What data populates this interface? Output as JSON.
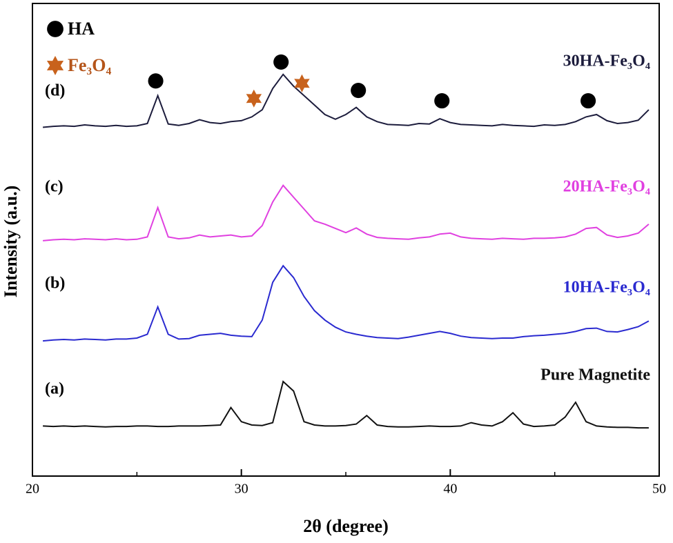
{
  "chart_data": {
    "type": "line",
    "x_label": "2θ (degree)",
    "y_label": "Intensity (a.u.)",
    "xlim": [
      20,
      50
    ],
    "ylim": [
      0,
      100
    ],
    "xticks": [
      20,
      30,
      40,
      50
    ],
    "xminorticks": [
      25,
      35,
      45
    ],
    "x": [
      20.5,
      21,
      21.5,
      22,
      22.5,
      23,
      23.5,
      24,
      24.5,
      25,
      25.5,
      26,
      26.5,
      27,
      27.5,
      28,
      28.5,
      29,
      29.5,
      30,
      30.5,
      31,
      31.5,
      32,
      32.5,
      33,
      33.5,
      34,
      34.5,
      35,
      35.5,
      36,
      36.5,
      37,
      37.5,
      38,
      38.5,
      39,
      39.5,
      40,
      40.5,
      41,
      41.5,
      42,
      42.5,
      43,
      43.5,
      44,
      44.5,
      45,
      45.5,
      46,
      46.5,
      47,
      47.5,
      48,
      48.5,
      49,
      49.5
    ],
    "series": [
      {
        "name": "30HA-Fe₃O₄",
        "tag": "(d)",
        "color": "#1c1c3c",
        "values": [
          73.8,
          74,
          74.1,
          74,
          74.3,
          74.1,
          74,
          74.2,
          74,
          74.1,
          74.6,
          80.5,
          74.5,
          74.2,
          74.6,
          75.4,
          74.8,
          74.6,
          75,
          75.2,
          76,
          77.5,
          82,
          85,
          82.5,
          80.5,
          78.5,
          76.5,
          75.5,
          76.5,
          78,
          76,
          75,
          74.4,
          74.3,
          74.2,
          74.6,
          74.5,
          75.6,
          74.8,
          74.4,
          74.3,
          74.2,
          74.1,
          74.4,
          74.2,
          74.1,
          74,
          74.3,
          74.2,
          74.4,
          75,
          76,
          76.5,
          75.2,
          74.6,
          74.8,
          75.3,
          77.5
        ]
      },
      {
        "name": "20HA-Fe₃O₄",
        "tag": "(c)",
        "color": "#e040e0",
        "values": [
          49.8,
          50,
          50.1,
          50,
          50.2,
          50.1,
          50,
          50.2,
          50,
          50.1,
          50.6,
          56.8,
          50.6,
          50.2,
          50.4,
          51,
          50.6,
          50.8,
          51,
          50.6,
          50.8,
          53,
          58,
          61.5,
          59,
          56.5,
          54,
          53.3,
          52.4,
          51.5,
          52.5,
          51.2,
          50.5,
          50.3,
          50.2,
          50.1,
          50.4,
          50.6,
          51.2,
          51.4,
          50.6,
          50.3,
          50.2,
          50.1,
          50.3,
          50.2,
          50.1,
          50.3,
          50.3,
          50.4,
          50.6,
          51.2,
          52.4,
          52.6,
          51,
          50.5,
          50.8,
          51.4,
          53.3
        ]
      },
      {
        "name": "10HA-Fe₃O₄",
        "tag": "(b)",
        "color": "#2a2ad0",
        "values": [
          28.6,
          28.8,
          28.9,
          28.8,
          29,
          28.9,
          28.8,
          29,
          29,
          29.2,
          30,
          35.8,
          30,
          29,
          29.1,
          29.8,
          30,
          30.2,
          29.8,
          29.6,
          29.5,
          33,
          41,
          44.5,
          42,
          38,
          35,
          33,
          31.5,
          30.5,
          30,
          29.6,
          29.3,
          29.2,
          29.1,
          29.4,
          29.8,
          30.2,
          30.6,
          30.2,
          29.6,
          29.3,
          29.2,
          29.1,
          29.2,
          29.2,
          29.5,
          29.7,
          29.8,
          30,
          30.2,
          30.6,
          31.2,
          31.3,
          30.6,
          30.5,
          31,
          31.6,
          32.8
        ]
      },
      {
        "name": "Pure Magnetite",
        "tag": "(a)",
        "color": "#111111",
        "values": [
          10.6,
          10.5,
          10.6,
          10.5,
          10.6,
          10.5,
          10.4,
          10.5,
          10.5,
          10.6,
          10.6,
          10.5,
          10.5,
          10.6,
          10.6,
          10.6,
          10.7,
          10.8,
          14.5,
          11.5,
          10.8,
          10.7,
          11.3,
          20,
          18,
          11.5,
          10.8,
          10.6,
          10.6,
          10.7,
          11,
          12.8,
          10.8,
          10.5,
          10.4,
          10.4,
          10.5,
          10.6,
          10.5,
          10.5,
          10.6,
          11.3,
          10.8,
          10.6,
          11.5,
          13.4,
          11,
          10.5,
          10.6,
          10.8,
          12.5,
          15.6,
          11.5,
          10.6,
          10.4,
          10.3,
          10.3,
          10.2,
          10.2
        ]
      }
    ],
    "markers": [
      {
        "name": "HA",
        "symbol": "circle",
        "color": "#000000",
        "x": [
          25.9,
          31.9,
          35.6,
          39.6,
          46.6
        ],
        "y": [
          83.6,
          87.6,
          81.6,
          79.4,
          79.4
        ]
      },
      {
        "name": "Fe₃O₄",
        "symbol": "star",
        "color": "#c8621c",
        "x": [
          30.6,
          32.9
        ],
        "y": [
          79.9,
          83.1
        ]
      }
    ]
  }
}
